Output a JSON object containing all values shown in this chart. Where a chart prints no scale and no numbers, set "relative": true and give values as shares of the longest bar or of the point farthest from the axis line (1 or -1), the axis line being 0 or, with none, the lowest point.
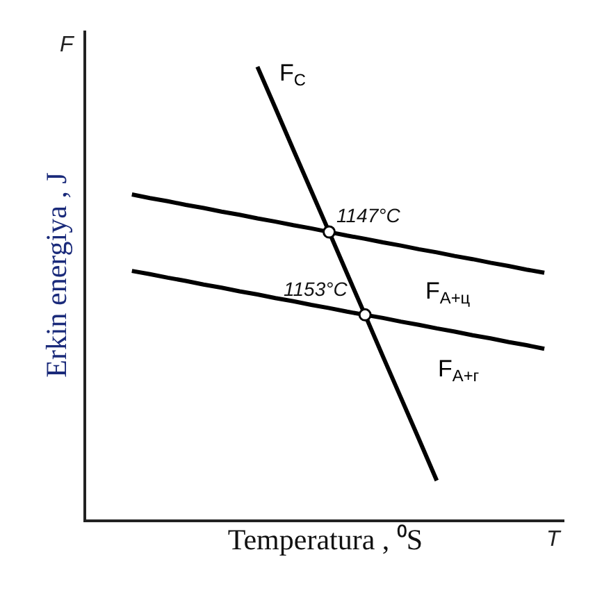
{
  "chart_data": {
    "type": "line",
    "relative": true,
    "xlabel": "Temperatura , ⁰S",
    "ylabel": "Erkin energiya , J",
    "grid": false,
    "line_style": "solid",
    "categories": [
      null,
      null,
      null,
      null,
      null,
      null,
      null,
      null,
      null,
      null,
      null,
      null,
      null,
      null,
      null,
      null,
      null,
      null,
      null,
      null,
      null,
      null,
      null,
      null
    ],
    "annotations": [
      "F",
      "T",
      "1147°C",
      "1153°C"
    ],
    "series": [
      {
        "name": "F$_{C}$",
        "color": "#000000",
        "marker": "none",
        "values": [
          null,
          null,
          null,
          null,
          null,
          null,
          null,
          1,
          0.909,
          0.817,
          0.726,
          0.635,
          0.543,
          0.452,
          0.36,
          0.269,
          0.178,
          0.086,
          null,
          null,
          null,
          null,
          null,
          null
        ]
      },
      {
        "name": "F$_{A+ц}$",
        "color": "#000000",
        "marker": "none",
        "values": [
          0.718,
          0.71,
          0.703,
          0.695,
          0.688,
          0.68,
          0.673,
          0.665,
          0.658,
          0.65,
          0.643,
          0.635,
          0.627,
          0.62,
          0.612,
          0.605,
          0.597,
          0.59,
          0.582,
          0.575,
          0.567,
          0.56,
          0.552,
          0.545
        ]
      },
      {
        "name": "F$_{A+г}$",
        "color": "#000000",
        "marker": "none",
        "values": [
          0.549,
          0.542,
          0.534,
          0.527,
          0.519,
          0.512,
          0.504,
          0.497,
          0.489,
          0.482,
          0.474,
          0.467,
          0.459,
          0.452,
          0.445,
          0.437,
          0.43,
          0.422,
          0.415,
          0.407,
          0.4,
          0.392,
          0.385,
          0.377
        ]
      }
    ]
  }
}
